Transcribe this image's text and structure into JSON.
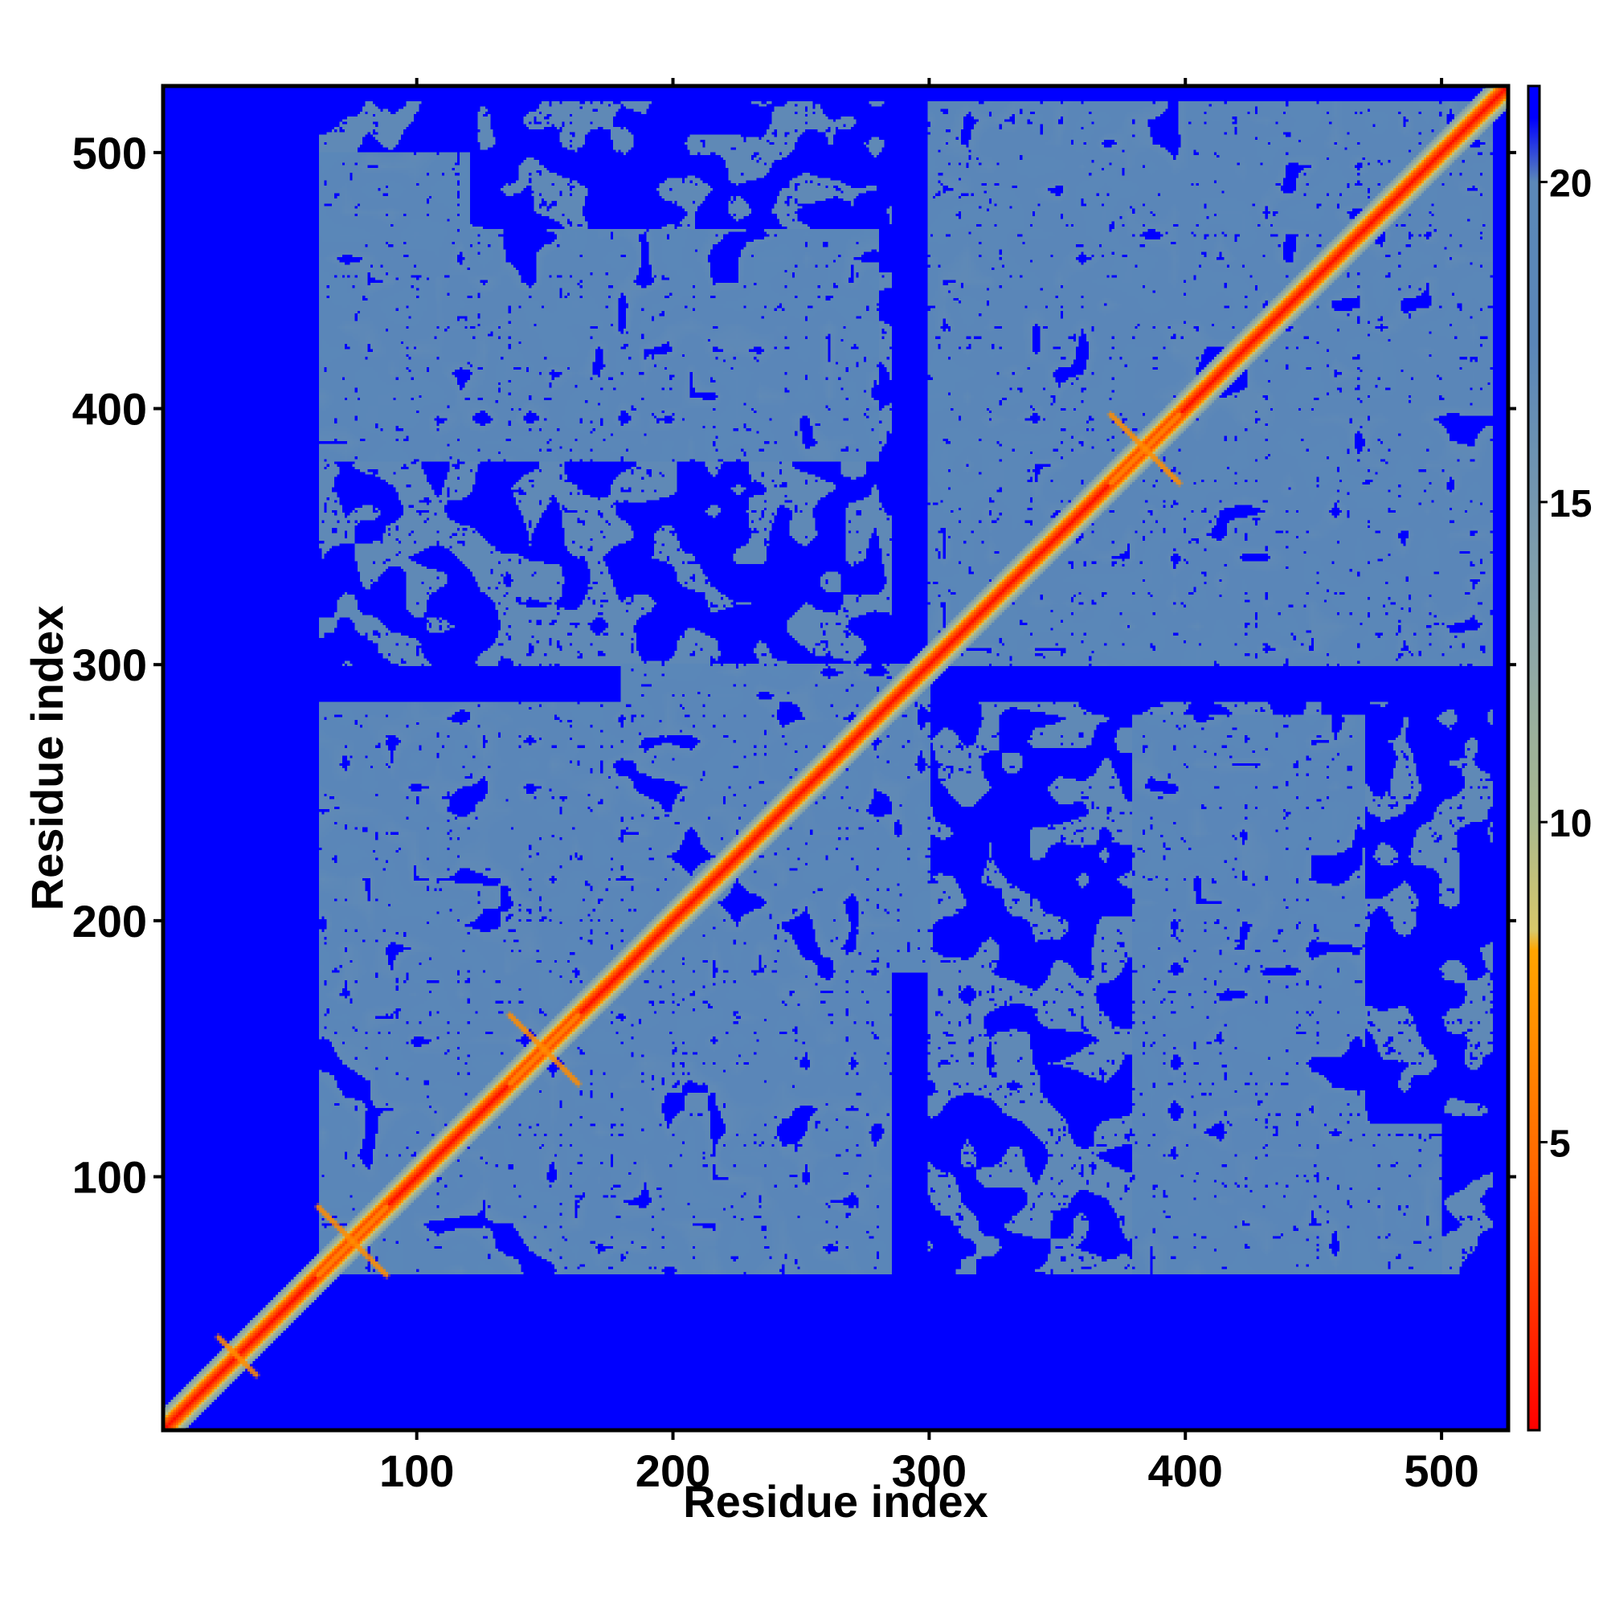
{
  "chart_data": {
    "type": "heatmap",
    "title": "",
    "xlabel": "Residue index",
    "ylabel": "Residue index",
    "xlim": [
      1,
      526
    ],
    "ylim": [
      1,
      526
    ],
    "x_ticks": [
      100,
      200,
      300,
      400,
      500
    ],
    "y_ticks": [
      100,
      200,
      300,
      400,
      500
    ],
    "x_tick_labels": [
      "100",
      "200",
      "300",
      "400",
      "500"
    ],
    "y_tick_labels": [
      "100",
      "200",
      "300",
      "400",
      "500"
    ],
    "n_residues": 526,
    "value_description": "pairwise residue distance (symmetric matrix)",
    "colorbar": {
      "min": 0.5,
      "max": 21.5,
      "ticks": [
        5,
        10,
        15,
        20
      ],
      "tick_labels": [
        "5",
        "10",
        "15",
        "20"
      ],
      "stops": [
        {
          "value": 0.5,
          "color": "#ff0000"
        },
        {
          "value": 4.5,
          "color": "#ff6600"
        },
        {
          "value": 8.0,
          "color": "#ffa500"
        },
        {
          "value": 8.3,
          "color": "#d8c86a"
        },
        {
          "value": 10.0,
          "color": "#a9b98e"
        },
        {
          "value": 12.5,
          "color": "#8fa8a6"
        },
        {
          "value": 17.5,
          "color": "#5a86b8"
        },
        {
          "value": 20.0,
          "color": "#5b88b8"
        },
        {
          "value": 21.0,
          "color": "#0000ff"
        },
        {
          "value": 21.5,
          "color": "#0000ff"
        }
      ]
    },
    "background_color": "#0000ff",
    "matrix": {
      "encoding": "symmetric distance map; diagonal red band, contact domains shown as steel-blue regions",
      "domains": [
        {
          "range": [
            62,
            285
          ],
          "level": 17
        },
        {
          "range": [
            300,
            520
          ],
          "level": 17
        }
      ],
      "off_domain_blocks": [
        {
          "x": [
            62,
            280
          ],
          "y": [
            380,
            470
          ],
          "level": 17
        },
        {
          "x": [
            430,
            500
          ],
          "y": [
            62,
            120
          ],
          "level": 17
        },
        {
          "x": [
            240,
            300
          ],
          "y": [
            180,
            300
          ],
          "level": 17
        }
      ],
      "contacts": [
        {
          "i": 150,
          "j": 150,
          "label": "cross"
        },
        {
          "i": 385,
          "j": 385,
          "label": "cross"
        },
        {
          "i": 75,
          "j": 75,
          "label": "cross"
        },
        {
          "i": 30,
          "j": 30,
          "label": "bulge"
        }
      ]
    }
  }
}
